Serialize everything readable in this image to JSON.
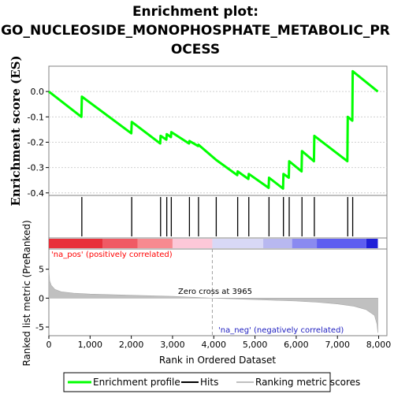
{
  "title_line1": "Enrichment plot:",
  "title_line2": "GO_NUCLEOSIDE_MONOPHOSPHATE_METABOLIC_PR",
  "title_line3": "OCESS",
  "chart_data": [
    {
      "type": "line",
      "name": "enrichment-score",
      "ylabel": "Enrichment score (ES)",
      "xlim": [
        0,
        8200
      ],
      "ylim": [
        -0.41,
        0.1
      ],
      "yticks": [
        0.0,
        -0.1,
        -0.2,
        -0.3,
        -0.4
      ],
      "ytick_labels": [
        "0.0",
        "-0.1",
        "-0.2",
        "-0.3",
        "-0.4"
      ],
      "grid": true,
      "series": [
        {
          "name": "Enrichment profile",
          "color": "#00ff00",
          "points": [
            [
              0,
              0.0
            ],
            [
              790,
              -0.1
            ],
            [
              800,
              -0.02
            ],
            [
              2000,
              -0.165
            ],
            [
              2010,
              -0.12
            ],
            [
              2700,
              -0.205
            ],
            [
              2710,
              -0.175
            ],
            [
              2850,
              -0.19
            ],
            [
              2860,
              -0.168
            ],
            [
              2960,
              -0.18
            ],
            [
              2970,
              -0.16
            ],
            [
              3400,
              -0.205
            ],
            [
              3410,
              -0.195
            ],
            [
              3620,
              -0.215
            ],
            [
              3630,
              -0.21
            ],
            [
              4060,
              -0.27
            ],
            [
              4570,
              -0.33
            ],
            [
              4580,
              -0.315
            ],
            [
              4840,
              -0.345
            ],
            [
              4850,
              -0.325
            ],
            [
              5330,
              -0.38
            ],
            [
              5340,
              -0.34
            ],
            [
              5680,
              -0.383
            ],
            [
              5690,
              -0.325
            ],
            [
              5820,
              -0.34
            ],
            [
              5830,
              -0.275
            ],
            [
              6130,
              -0.315
            ],
            [
              6140,
              -0.235
            ],
            [
              6430,
              -0.275
            ],
            [
              6440,
              -0.175
            ],
            [
              7240,
              -0.275
            ],
            [
              7250,
              -0.1
            ],
            [
              7360,
              -0.115
            ],
            [
              7370,
              0.08
            ],
            [
              7980,
              0.0
            ]
          ]
        }
      ]
    },
    {
      "type": "hits",
      "name": "hit-positions",
      "series": [
        {
          "name": "Hits",
          "color": "#000000",
          "x": [
            800,
            2010,
            2710,
            2860,
            2970,
            3410,
            3630,
            4060,
            4580,
            4850,
            5340,
            5690,
            5830,
            6140,
            6440,
            7250,
            7370
          ]
        }
      ]
    },
    {
      "type": "area",
      "name": "ranked-list-metric",
      "xlabel": "Rank in Ordered Dataset",
      "ylabel": "Ranked list metric (PreRanked)",
      "xlim": [
        0,
        8200
      ],
      "ylim": [
        -6.5,
        8.5
      ],
      "xticks": [
        0,
        1000,
        2000,
        3000,
        4000,
        5000,
        6000,
        7000,
        8000
      ],
      "xtick_labels": [
        "0",
        "1,000",
        "2,000",
        "3,000",
        "4,000",
        "5,000",
        "6,000",
        "7,000",
        "8,000"
      ],
      "yticks": [
        5,
        0,
        -5
      ],
      "ytick_labels": [
        "5",
        "0",
        "-5"
      ],
      "zero_cross": 3965,
      "annotations": {
        "zero_cross": "Zero cross at 3965",
        "na_pos": "'na_pos' (positively correlated)",
        "na_neg": "'na_neg' (negatively correlated)"
      },
      "series": [
        {
          "name": "Ranking metric scores",
          "color": "#c0c0c0",
          "points": [
            [
              0,
              5.0
            ],
            [
              20,
              3.0
            ],
            [
              60,
              2.2
            ],
            [
              150,
              1.5
            ],
            [
              300,
              1.1
            ],
            [
              600,
              0.85
            ],
            [
              1000,
              0.7
            ],
            [
              2000,
              0.5
            ],
            [
              3000,
              0.3
            ],
            [
              3965,
              0.0
            ],
            [
              5000,
              -0.25
            ],
            [
              6000,
              -0.5
            ],
            [
              6500,
              -0.7
            ],
            [
              7000,
              -1.0
            ],
            [
              7400,
              -1.4
            ],
            [
              7700,
              -2.0
            ],
            [
              7900,
              -3.0
            ],
            [
              7960,
              -4.5
            ],
            [
              7980,
              -6.0
            ]
          ]
        }
      ]
    }
  ],
  "colors": {
    "profile": "#00ff00",
    "grid": "#d0d0d0",
    "pos_label": "#ff0000",
    "neg_label": "#2020c0"
  },
  "legend": {
    "items": [
      {
        "label": "Enrichment profile",
        "color": "#00ff00"
      },
      {
        "label": "Hits",
        "color": "#000000"
      },
      {
        "label": "Ranking metric scores",
        "color": "#c0c0c0"
      }
    ]
  }
}
